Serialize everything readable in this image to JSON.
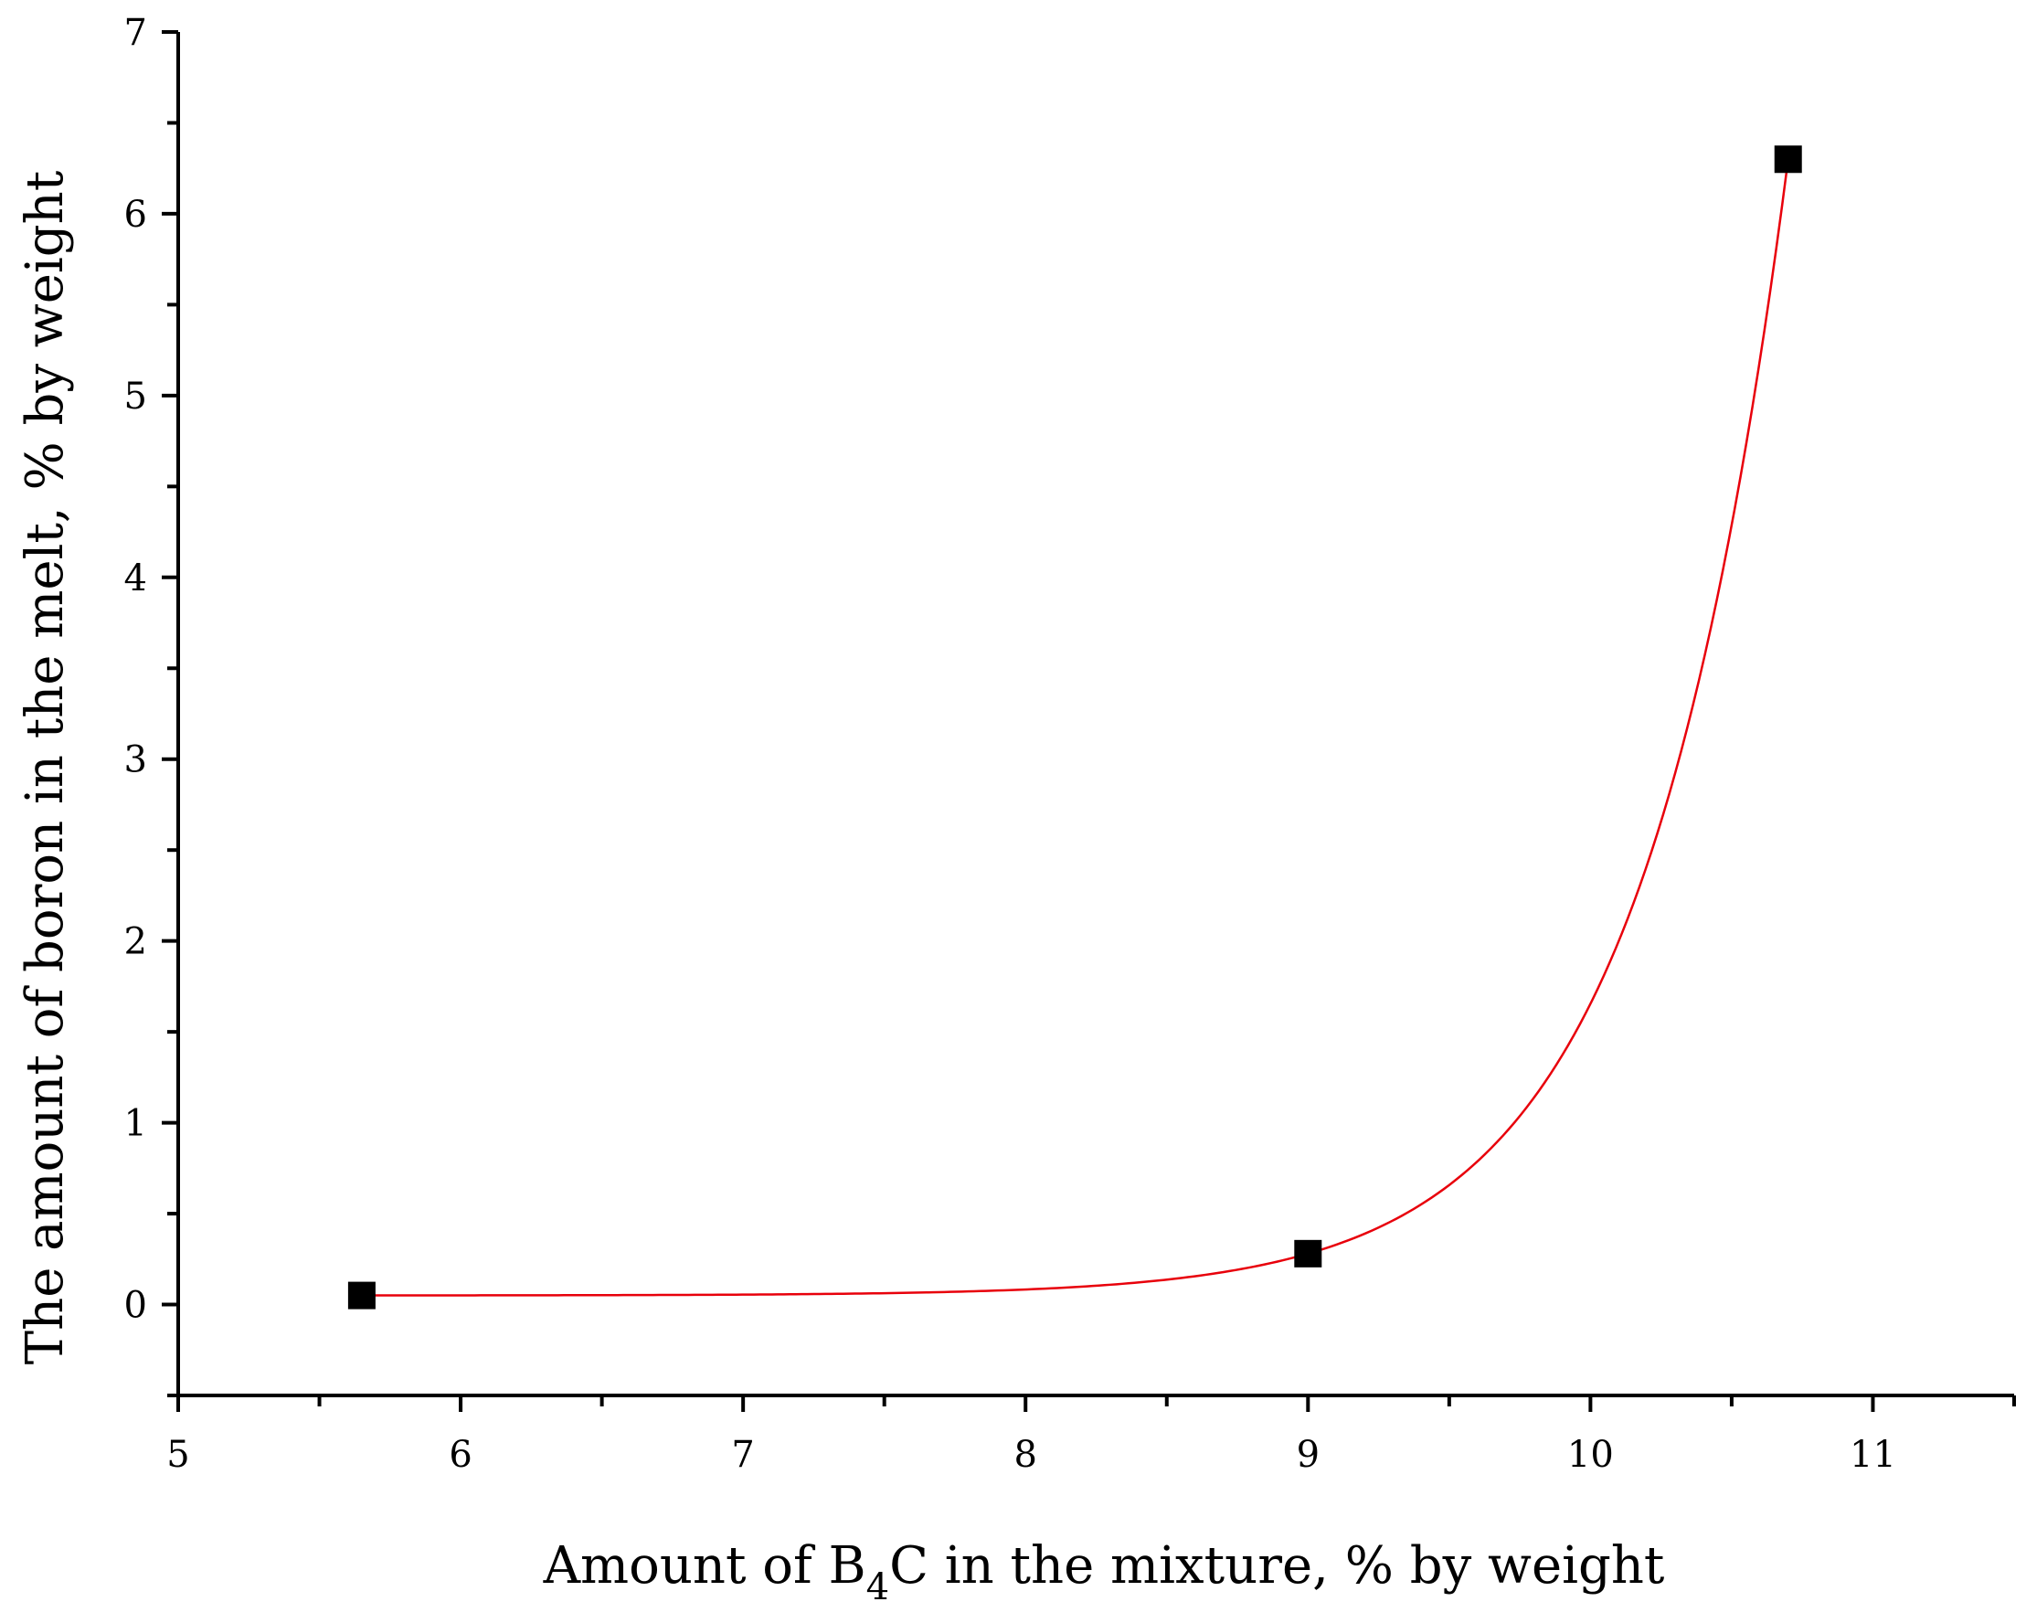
{
  "chart_data": {
    "type": "scatter",
    "title": "",
    "xlabel_parts": {
      "before": "Amount of B",
      "subscript": "4",
      "after": "C in the mixture, % by weight"
    },
    "ylabel": "The amount of boron in the melt, % by weight",
    "xlim": [
      5,
      11.5
    ],
    "ylim": [
      -0.5,
      7
    ],
    "x_ticks": [
      5,
      6,
      7,
      8,
      9,
      10,
      11
    ],
    "y_ticks": [
      0,
      1,
      2,
      3,
      4,
      5,
      6,
      7
    ],
    "x_minor_step": 0.5,
    "y_minor_step": 0.5,
    "series": [
      {
        "marker": "square",
        "color": "#000000",
        "x": [
          5.65,
          9.0,
          10.7
        ],
        "y": [
          0.05,
          0.28,
          6.3
        ]
      }
    ],
    "fit": {
      "type": "exponential",
      "color": "#e8000b",
      "x_range": [
        5.65,
        10.7
      ],
      "baseline": 0.05,
      "through": [
        [
          9.0,
          0.28
        ],
        [
          10.7,
          6.3
        ]
      ]
    },
    "grid": false,
    "legend": "none"
  }
}
